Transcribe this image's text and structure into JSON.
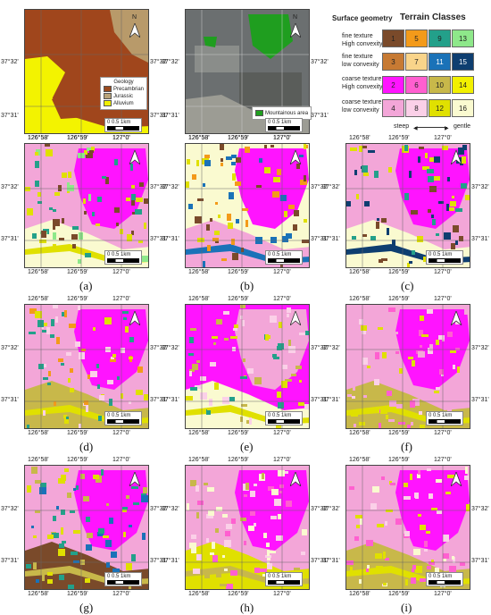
{
  "axis_ticks": {
    "lon": [
      "126°58'",
      "126°59'",
      "127°0'"
    ],
    "lat": [
      "37°32'",
      "37°31'"
    ]
  },
  "panel_labels": [
    "(a)",
    "(b)",
    "(c)",
    "(d)",
    "(e)",
    "(f)",
    "(g)",
    "(h)",
    "(i)"
  ],
  "scale": {
    "values": [
      "0",
      "0.5",
      "1km"
    ]
  },
  "north_label": "N",
  "geology_legend": {
    "title": "Geology",
    "items": [
      {
        "label": "Precambrian",
        "color": "#9a4a1e"
      },
      {
        "label": "Jurassic",
        "color": "#b9a47a"
      },
      {
        "label": "Alluvium",
        "color": "#f0f000"
      }
    ]
  },
  "satellite_legend": {
    "label": "Mountainous area",
    "color": "#1f9e1f"
  },
  "terrain_classes": {
    "title_left": "Surface geometry",
    "title_right": "Terrain Classes",
    "row_labels": [
      [
        "fine texture",
        "High convexity"
      ],
      [
        "fine texture",
        "low convexity"
      ],
      [
        "coarse texture",
        "High convexity"
      ],
      [
        "coarse texture",
        "low convexity"
      ]
    ],
    "cells": [
      [
        {
          "n": "1",
          "c": "#7a4a2a"
        },
        {
          "n": "5",
          "c": "#f39a1a"
        },
        {
          "n": "9",
          "c": "#23a08a"
        },
        {
          "n": "13",
          "c": "#8ee88a"
        }
      ],
      [
        {
          "n": "3",
          "c": "#c77a33"
        },
        {
          "n": "7",
          "c": "#f9d48a"
        },
        {
          "n": "11",
          "c": "#1a72b8"
        },
        {
          "n": "15",
          "c": "#0e3e70"
        }
      ],
      [
        {
          "n": "2",
          "c": "#ff14ff"
        },
        {
          "n": "6",
          "c": "#ff5fd0"
        },
        {
          "n": "10",
          "c": "#c8b84a"
        },
        {
          "n": "14",
          "c": "#f2f000"
        }
      ],
      [
        {
          "n": "4",
          "c": "#f3a6d8"
        },
        {
          "n": "8",
          "c": "#fbd0e8"
        },
        {
          "n": "12",
          "c": "#e0e000"
        },
        {
          "n": "16",
          "c": "#fafad0"
        }
      ]
    ],
    "steep_label": "steep",
    "gentle_label": "gentle"
  }
}
